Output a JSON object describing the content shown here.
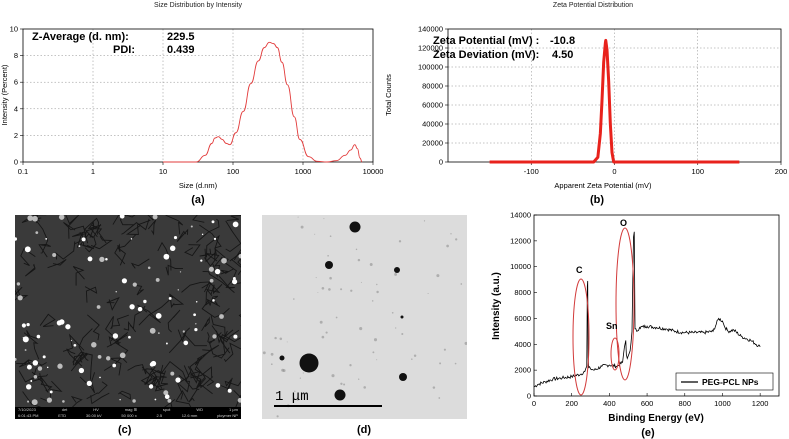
{
  "chart_data": [
    {
      "type": "line",
      "panel": "a",
      "title": "Size Distribution by Intensity",
      "xlabel": "Size (d.nm)",
      "ylabel": "Intensity (Percent)",
      "xscale": "log",
      "xlim": [
        0.1,
        10000
      ],
      "ylim": [
        0,
        10
      ],
      "x_ticks": [
        "0.1",
        "1",
        "10",
        "100",
        "1000",
        "10000"
      ],
      "y_ticks": [
        "0",
        "2",
        "4",
        "6",
        "8",
        "10"
      ],
      "annotations": [
        {
          "label": "Z-Average (d. nm):",
          "value": "229.5"
        },
        {
          "label": "PDI:",
          "value": "0.439"
        }
      ],
      "series": [
        {
          "name": "intensity",
          "color": "#e23b3b",
          "x": [
            10,
            30,
            40,
            50,
            55,
            62,
            70,
            80,
            90,
            110,
            140,
            180,
            230,
            280,
            330,
            380,
            430,
            500,
            600,
            750,
            900,
            1200,
            1600,
            2200,
            3000,
            4000,
            4800,
            5500,
            6000,
            6500,
            7000
          ],
          "y": [
            0,
            0,
            0.5,
            1.4,
            1.8,
            1.9,
            1.7,
            1.4,
            1.3,
            2.2,
            3.8,
            5.9,
            7.6,
            8.6,
            9.0,
            8.9,
            8.6,
            7.5,
            5.8,
            3.4,
            1.7,
            0.4,
            0.05,
            0,
            0.1,
            0.5,
            0.9,
            1.3,
            1.0,
            0.3,
            0
          ]
        }
      ]
    },
    {
      "type": "line",
      "panel": "b",
      "title": "Zeta Potential Distribution",
      "xlabel": "Apparent Zeta Potential (mV)",
      "ylabel": "Total Counts",
      "xlim": [
        -200,
        200
      ],
      "ylim": [
        0,
        140000
      ],
      "x_ticks": [
        "-100",
        "0",
        "100",
        "200"
      ],
      "y_ticks": [
        "0",
        "20000",
        "40000",
        "60000",
        "80000",
        "100000",
        "120000",
        "140000"
      ],
      "annotations": [
        {
          "label": "Zeta Potential (mV) :",
          "value": "-10.8"
        },
        {
          "label": "Zeta Deviation (mV):",
          "value": "4.50"
        }
      ],
      "series": [
        {
          "name": "counts",
          "color": "#e8221c",
          "x": [
            -150,
            -25,
            -20,
            -17,
            -15,
            -13,
            -11,
            -10.5,
            -9,
            -7,
            -5,
            -3,
            -1,
            3,
            150
          ],
          "y": [
            0,
            0,
            5000,
            30000,
            65000,
            105000,
            125000,
            128000,
            118000,
            85000,
            40000,
            10000,
            0,
            0,
            0
          ]
        }
      ]
    },
    {
      "type": "line",
      "panel": "e",
      "xlabel": "Binding Energy (eV)",
      "ylabel": "Intensity (a.u.)",
      "xlim": [
        0,
        1300
      ],
      "ylim": [
        0,
        14000
      ],
      "x_ticks": [
        "0",
        "200",
        "400",
        "600",
        "800",
        "1000",
        "1200"
      ],
      "y_ticks": [
        "0",
        "2000",
        "4000",
        "6000",
        "8000",
        "10000",
        "12000",
        "14000"
      ],
      "legend": "bottom-right",
      "peak_labels": [
        {
          "label": "C",
          "x": 285,
          "y": 8900
        },
        {
          "label": "O",
          "x": 532,
          "y": 12700
        },
        {
          "label": "Sn",
          "x": 487,
          "y": 4800
        }
      ],
      "series": [
        {
          "name": "PEG-PCL NPs",
          "color": "#000000",
          "x": [
            0,
            20,
            60,
            100,
            150,
            200,
            250,
            270,
            280,
            283,
            285,
            287,
            290,
            300,
            320,
            360,
            400,
            440,
            470,
            480,
            487,
            490,
            495,
            500,
            510,
            520,
            528,
            532,
            536,
            545,
            560,
            600,
            650,
            700,
            750,
            800,
            850,
            900,
            950,
            980,
            1000,
            1010,
            1030,
            1060,
            1100,
            1150,
            1200
          ],
          "y": [
            700,
            900,
            1100,
            1300,
            1400,
            1500,
            1700,
            1900,
            2300,
            8500,
            8900,
            3000,
            2200,
            2100,
            2000,
            2300,
            2400,
            2300,
            2600,
            3800,
            4300,
            3200,
            2900,
            3100,
            3500,
            5000,
            12300,
            12700,
            5200,
            5000,
            5300,
            5400,
            5300,
            5200,
            5000,
            4900,
            4900,
            4900,
            5000,
            6000,
            5800,
            5400,
            5000,
            5100,
            4600,
            4300,
            3800
          ]
        }
      ]
    }
  ],
  "panels": {
    "a": "(a)",
    "b": "(b)",
    "c": "(c)",
    "d": "(d)",
    "e": "(e)"
  },
  "sem": {
    "footer_line1": [
      "7/10/2023",
      "det",
      "HV",
      "mag ⊞",
      "spot",
      "WD",
      "1 μm"
    ],
    "footer_line2": [
      "6:01:43 PM",
      "ETD",
      "30.00 kV",
      "50 000 x",
      "2.5",
      "12.6 mm",
      "ploymer NP"
    ]
  },
  "tem": {
    "scale_label": "1 μm"
  }
}
